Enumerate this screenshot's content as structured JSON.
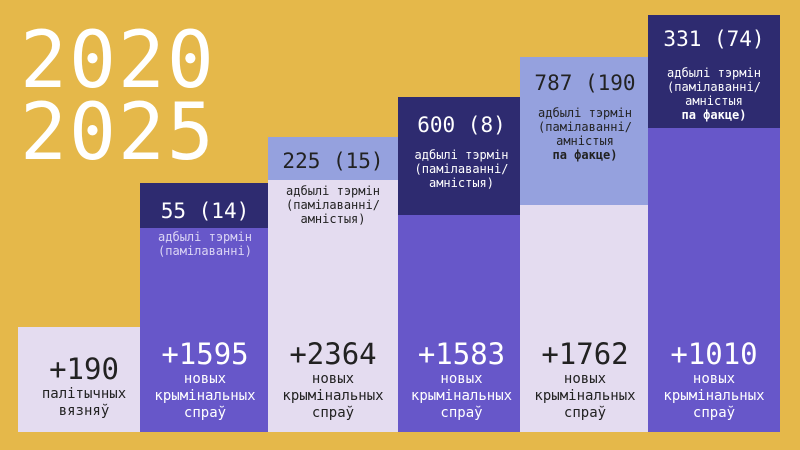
{
  "title": [
    "2020",
    "2025"
  ],
  "columns": [
    {
      "total": "+190",
      "caption": [
        "палітычных",
        "вязняў"
      ]
    },
    {
      "header": "55 (14)",
      "note": [
        "адбылі тэрмін",
        "(памілаванні)"
      ],
      "total": "+1595",
      "caption": [
        "новых",
        "крымінальных",
        "спраў"
      ]
    },
    {
      "header": "225 (15)",
      "note": [
        "адбылі тэрмін",
        "(памілаванні/",
        "амністыя)"
      ],
      "total": "+2364",
      "caption": [
        "новых",
        "крымінальных",
        "спраў"
      ]
    },
    {
      "header": "600 (8)",
      "note": [
        "адбылі тэрмін",
        "(памілаванні/",
        "амністыя)"
      ],
      "total": "+1583",
      "caption": [
        "новых",
        "крымінальных",
        "спраў"
      ]
    },
    {
      "header": "787 (190",
      "note": [
        "адбылі тэрмін",
        "(памілаванні/",
        "амністыя"
      ],
      "note_bold": "па факце)",
      "total": "+1762",
      "caption": [
        "новых",
        "крымінальных",
        "спраў"
      ]
    },
    {
      "header": "331 (74)",
      "note": [
        "адбылі тэрмін",
        "(памілаванні/",
        "амністыя"
      ],
      "note_bold": "па факце)",
      "total": "+1010",
      "caption": [
        "новых",
        "крымінальных",
        "спраў"
      ]
    }
  ]
}
